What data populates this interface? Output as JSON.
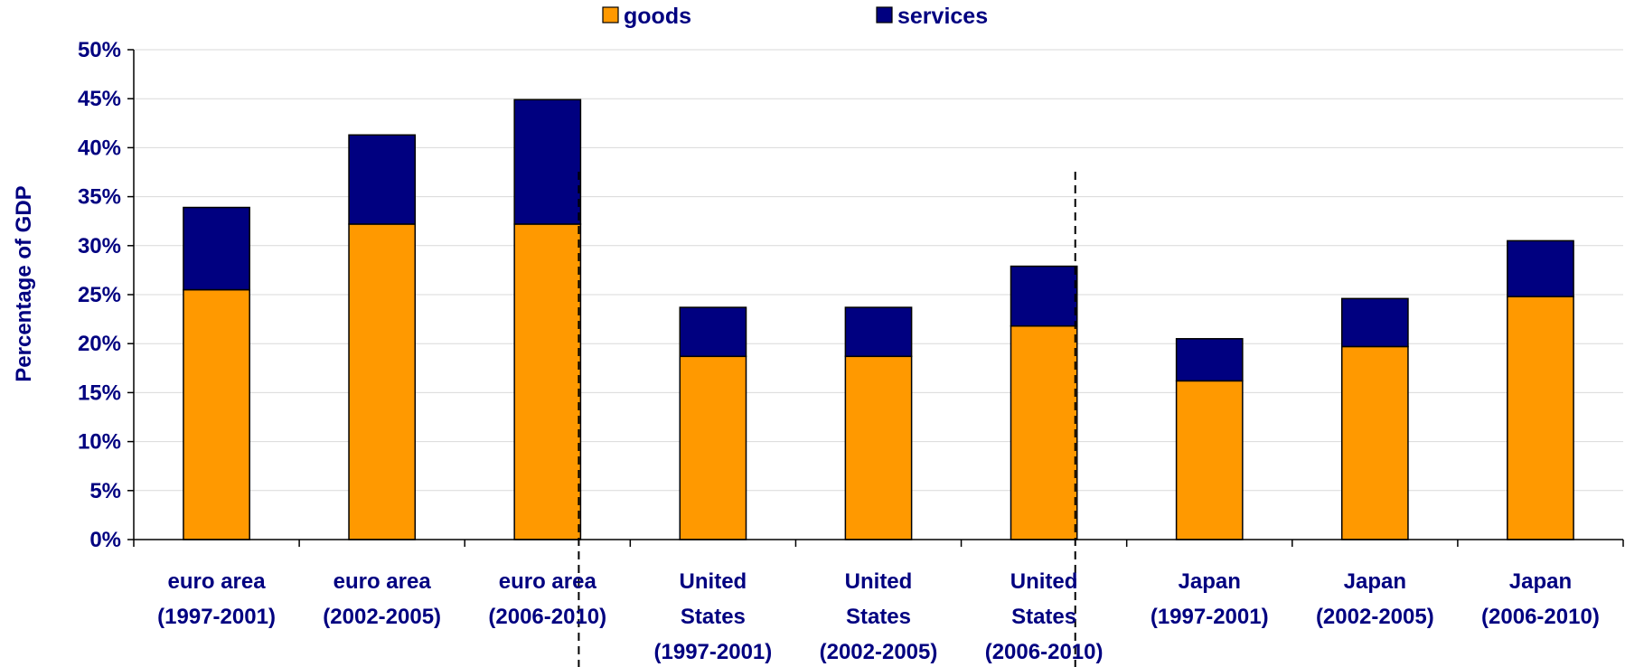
{
  "chart_data": {
    "type": "bar",
    "stacked": true,
    "categories": [
      [
        "euro area",
        "(1997-2001)"
      ],
      [
        "euro area",
        "(2002-2005)"
      ],
      [
        "euro area",
        "(2006-2010)"
      ],
      [
        "United",
        "States",
        "(1997-2001)"
      ],
      [
        "United",
        "States",
        "(2002-2005)"
      ],
      [
        "United",
        "States",
        "(2006-2010)"
      ],
      [
        "Japan",
        "(1997-2001)"
      ],
      [
        "Japan",
        "(2002-2005)"
      ],
      [
        "Japan",
        "(2006-2010)"
      ]
    ],
    "series": [
      {
        "name": "goods",
        "color": "#FF9900",
        "values": [
          25.5,
          32.2,
          32.2,
          18.7,
          18.7,
          21.8,
          16.2,
          19.7,
          24.8
        ]
      },
      {
        "name": "services",
        "color": "#000080",
        "values": [
          8.4,
          9.1,
          12.7,
          5.0,
          5.0,
          6.1,
          4.3,
          4.9,
          5.7
        ]
      }
    ],
    "ylabel": "Percentage of GDP",
    "ylim": [
      0,
      50
    ],
    "yticks": [
      "0%",
      "5%",
      "10%",
      "15%",
      "20%",
      "25%",
      "30%",
      "35%",
      "40%",
      "45%",
      "50%"
    ],
    "ytick_values": [
      0,
      5,
      10,
      15,
      20,
      25,
      30,
      35,
      40,
      45,
      50
    ],
    "grid": true,
    "legend_position": "top",
    "separators_after_category": [
      2,
      5
    ],
    "separator_style": "dashed"
  }
}
